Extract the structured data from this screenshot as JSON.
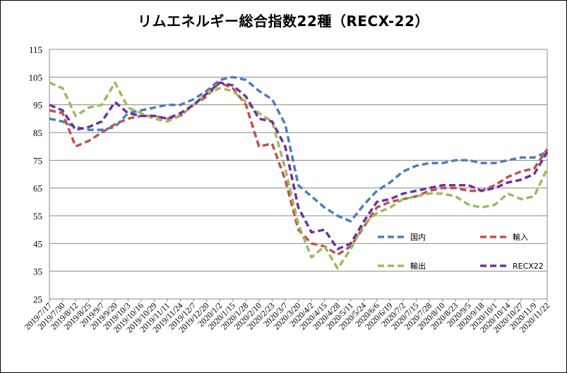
{
  "chart_data": {
    "type": "line",
    "title": "リムエネルギー総合指数22種（RECX-22）",
    "xlabel": "",
    "ylabel": "",
    "ylim": [
      25,
      115
    ],
    "yticks": [
      25,
      35,
      45,
      55,
      65,
      75,
      85,
      95,
      105,
      115
    ],
    "grid": true,
    "legend_position": "lower-right",
    "categories": [
      "2019/7/17",
      "2019/7/30",
      "2019/8/12",
      "2019/8/25",
      "2019/9/7",
      "2019/9/20",
      "2019/10/3",
      "2019/10/16",
      "2019/10/29",
      "2019/11/11",
      "2019/11/24",
      "2019/12/7",
      "2019/12/20",
      "2020/1/2",
      "2020/1/15",
      "2020/1/28",
      "2020/2/10",
      "2020/2/23",
      "2020/3/7",
      "2020/3/20",
      "2020/4/2",
      "2020/4/15",
      "2020/4/28",
      "2020/5/11",
      "2020/5/24",
      "2020/6/6",
      "2020/6/19",
      "2020/7/2",
      "2020/7/15",
      "2020/7/28",
      "2020/8/10",
      "2020/8/23",
      "2020/9/5",
      "2020/9/18",
      "2020/10/1",
      "2020/10/14",
      "2020/10/27",
      "2020/11/9",
      "2020/11/22"
    ],
    "series": [
      {
        "name": "国内",
        "color": "#4a7ebf",
        "values": [
          90,
          89,
          87,
          86,
          86,
          87,
          92,
          93,
          94,
          95,
          95,
          97,
          100,
          104,
          105,
          104,
          100,
          97,
          88,
          66,
          62,
          58,
          55,
          53,
          59,
          64,
          67,
          71,
          73,
          74,
          74,
          75,
          75,
          74,
          74,
          75,
          76,
          76,
          78
        ]
      },
      {
        "name": "輸入",
        "color": "#c0504d",
        "values": [
          93,
          92,
          80,
          82,
          85,
          88,
          90,
          91,
          91,
          90,
          91,
          95,
          98,
          103,
          101,
          95,
          80,
          81,
          68,
          50,
          45,
          44,
          41,
          44,
          51,
          58,
          60,
          61,
          62,
          64,
          65,
          65,
          64,
          64,
          66,
          69,
          71,
          72,
          79
        ]
      },
      {
        "name": "輸出",
        "color": "#9bbb59",
        "values": [
          103,
          101,
          91,
          94,
          95,
          103,
          94,
          92,
          90,
          89,
          91,
          95,
          99,
          101,
          100,
          96,
          92,
          89,
          72,
          52,
          40,
          44,
          36,
          43,
          52,
          56,
          58,
          61,
          62,
          63,
          63,
          62,
          59,
          58,
          59,
          63,
          61,
          62,
          72
        ]
      },
      {
        "name": "RECX22",
        "color": "#7030a0",
        "values": [
          95,
          93,
          86,
          87,
          89,
          96,
          92,
          91,
          91,
          90,
          92,
          95,
          99,
          103,
          102,
          98,
          90,
          89,
          80,
          58,
          49,
          50,
          43,
          45,
          53,
          60,
          61,
          63,
          64,
          65,
          66,
          66,
          66,
          64,
          65,
          67,
          68,
          70,
          78
        ]
      }
    ]
  }
}
